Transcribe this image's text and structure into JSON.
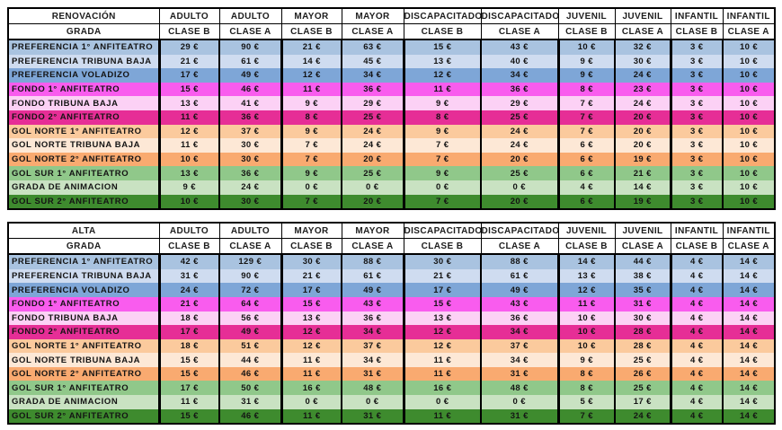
{
  "currency": "€",
  "palette": {
    "border": "#000000",
    "header_bg": "#ffffff",
    "text": "#141414"
  },
  "chart_data": [
    {
      "type": "table",
      "title": "RENOVACIÓN",
      "row_header": "GRADA",
      "column_groups": [
        "ADULTO",
        "ADULTO",
        "MAYOR",
        "MAYOR",
        "DISCAPACITADO",
        "DISCAPACITADO",
        "JUVENIL",
        "JUVENIL",
        "INFANTIL",
        "INFANTIL"
      ],
      "column_classes": [
        "CLASE B",
        "CLASE A",
        "CLASE B",
        "CLASE A",
        "CLASE B",
        "CLASE A",
        "CLASE B",
        "CLASE A",
        "CLASE B",
        "CLASE A"
      ],
      "value_unit": "€",
      "rows": [
        {
          "label": "PREFERENCIA 1° ANFITEATRO",
          "color": "#a9c3e0",
          "values": [
            29,
            90,
            21,
            63,
            15,
            43,
            10,
            32,
            3,
            10
          ]
        },
        {
          "label": "PREFERENCIA TRIBUNA BAJA",
          "color": "#cfdcf0",
          "values": [
            21,
            61,
            14,
            45,
            13,
            40,
            9,
            30,
            3,
            10
          ]
        },
        {
          "label": "PREFERENCIA VOLADIZO",
          "color": "#7ea6d7",
          "values": [
            17,
            49,
            12,
            34,
            12,
            34,
            9,
            24,
            3,
            10
          ]
        },
        {
          "label": "FONDO 1° ANFITEATRO",
          "color": "#f95cee",
          "values": [
            15,
            46,
            11,
            36,
            11,
            36,
            8,
            23,
            3,
            10
          ]
        },
        {
          "label": "FONDO TRIBUNA BAJA",
          "color": "#fcd1f5",
          "values": [
            13,
            41,
            9,
            29,
            9,
            29,
            7,
            24,
            3,
            10
          ]
        },
        {
          "label": "FONDO 2° ANFITEATRO",
          "color": "#e62e96",
          "values": [
            11,
            36,
            8,
            25,
            8,
            25,
            7,
            20,
            3,
            10
          ]
        },
        {
          "label": "GOL NORTE 1° ANFITEATRO",
          "color": "#fbca9d",
          "values": [
            12,
            37,
            9,
            24,
            9,
            24,
            7,
            20,
            3,
            10
          ]
        },
        {
          "label": "GOL NORTE TRIBUNA BAJA",
          "color": "#fde8d6",
          "values": [
            11,
            30,
            7,
            24,
            7,
            24,
            6,
            20,
            3,
            10
          ]
        },
        {
          "label": "GOL NORTE 2° ANFITEATRO",
          "color": "#f9aa70",
          "values": [
            10,
            30,
            7,
            20,
            7,
            20,
            6,
            19,
            3,
            10
          ]
        },
        {
          "label": "GOL SUR 1° ANFITEATRO",
          "color": "#90c88a",
          "values": [
            13,
            36,
            9,
            25,
            9,
            25,
            6,
            21,
            3,
            10
          ]
        },
        {
          "label": "GRADA DE ANIMACION",
          "color": "#c9e2c2",
          "values": [
            9,
            24,
            0,
            0,
            0,
            0,
            4,
            14,
            3,
            10
          ]
        },
        {
          "label": "GOL SUR 2° ANFITEATRO",
          "color": "#3e8b2e",
          "values": [
            10,
            30,
            7,
            20,
            7,
            20,
            6,
            19,
            3,
            10
          ]
        }
      ]
    },
    {
      "type": "table",
      "title": "ALTA",
      "row_header": "GRADA",
      "column_groups": [
        "ADULTO",
        "ADULTO",
        "MAYOR",
        "MAYOR",
        "DISCAPACITADO",
        "DISCAPACITADO",
        "JUVENIL",
        "JUVENIL",
        "INFANTIL",
        "INFANTIL"
      ],
      "column_classes": [
        "CLASE B",
        "CLASE A",
        "CLASE B",
        "CLASE A",
        "CLASE B",
        "CLASE A",
        "CLASE B",
        "CLASE A",
        "CLASE B",
        "CLASE A"
      ],
      "value_unit": "€",
      "rows": [
        {
          "label": "PREFERENCIA 1° ANFITEATRO",
          "color": "#a9c3e0",
          "values": [
            42,
            129,
            30,
            88,
            30,
            88,
            14,
            44,
            4,
            14
          ]
        },
        {
          "label": "PREFERENCIA TRIBUNA BAJA",
          "color": "#cfdcf0",
          "values": [
            31,
            90,
            21,
            61,
            21,
            61,
            13,
            38,
            4,
            14
          ]
        },
        {
          "label": "PREFERENCIA VOLADIZO",
          "color": "#7ea6d7",
          "values": [
            24,
            72,
            17,
            49,
            17,
            49,
            12,
            35,
            4,
            14
          ]
        },
        {
          "label": "FONDO 1° ANFITEATRO",
          "color": "#f95cee",
          "values": [
            21,
            64,
            15,
            43,
            15,
            43,
            11,
            31,
            4,
            14
          ]
        },
        {
          "label": "FONDO TRIBUNA BAJA",
          "color": "#fcd1f5",
          "values": [
            18,
            56,
            13,
            36,
            13,
            36,
            10,
            30,
            4,
            14
          ]
        },
        {
          "label": "FONDO 2° ANFITEATRO",
          "color": "#e62e96",
          "values": [
            17,
            49,
            12,
            34,
            12,
            34,
            10,
            28,
            4,
            14
          ]
        },
        {
          "label": "GOL NORTE 1° ANFITEATRO",
          "color": "#fbca9d",
          "values": [
            18,
            51,
            12,
            37,
            12,
            37,
            10,
            28,
            4,
            14
          ]
        },
        {
          "label": "GOL NORTE TRIBUNA BAJA",
          "color": "#fde8d6",
          "values": [
            15,
            44,
            11,
            34,
            11,
            34,
            9,
            25,
            4,
            14
          ]
        },
        {
          "label": "GOL NORTE 2° ANFITEATRO",
          "color": "#f9aa70",
          "values": [
            15,
            46,
            11,
            31,
            11,
            31,
            8,
            26,
            4,
            14
          ]
        },
        {
          "label": "GOL SUR 1° ANFITEATRO",
          "color": "#90c88a",
          "values": [
            17,
            50,
            16,
            48,
            16,
            48,
            8,
            25,
            4,
            14
          ]
        },
        {
          "label": "GRADA DE ANIMACION",
          "color": "#c9e2c2",
          "values": [
            11,
            31,
            0,
            0,
            0,
            0,
            5,
            17,
            4,
            14
          ]
        },
        {
          "label": "GOL SUR 2° ANFITEATRO",
          "color": "#3e8b2e",
          "values": [
            15,
            46,
            11,
            31,
            11,
            31,
            7,
            24,
            4,
            14
          ]
        }
      ]
    }
  ]
}
